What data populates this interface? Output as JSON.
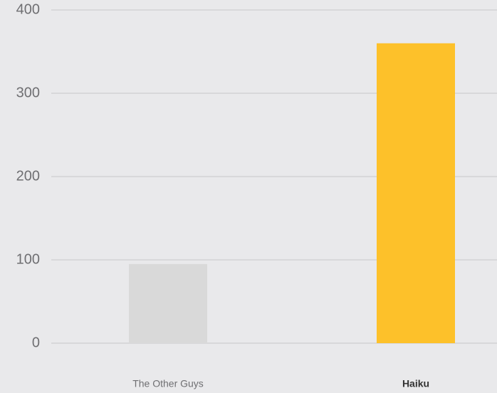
{
  "chart_data": {
    "type": "bar",
    "categories": [
      "The Other Guys",
      "Haiku"
    ],
    "values": [
      95,
      360
    ],
    "colors": [
      "#d9d9d9",
      "#fdc12a"
    ],
    "ylim": [
      0,
      400
    ],
    "yticks": [
      0,
      100,
      200,
      300,
      400
    ],
    "grid": true
  }
}
